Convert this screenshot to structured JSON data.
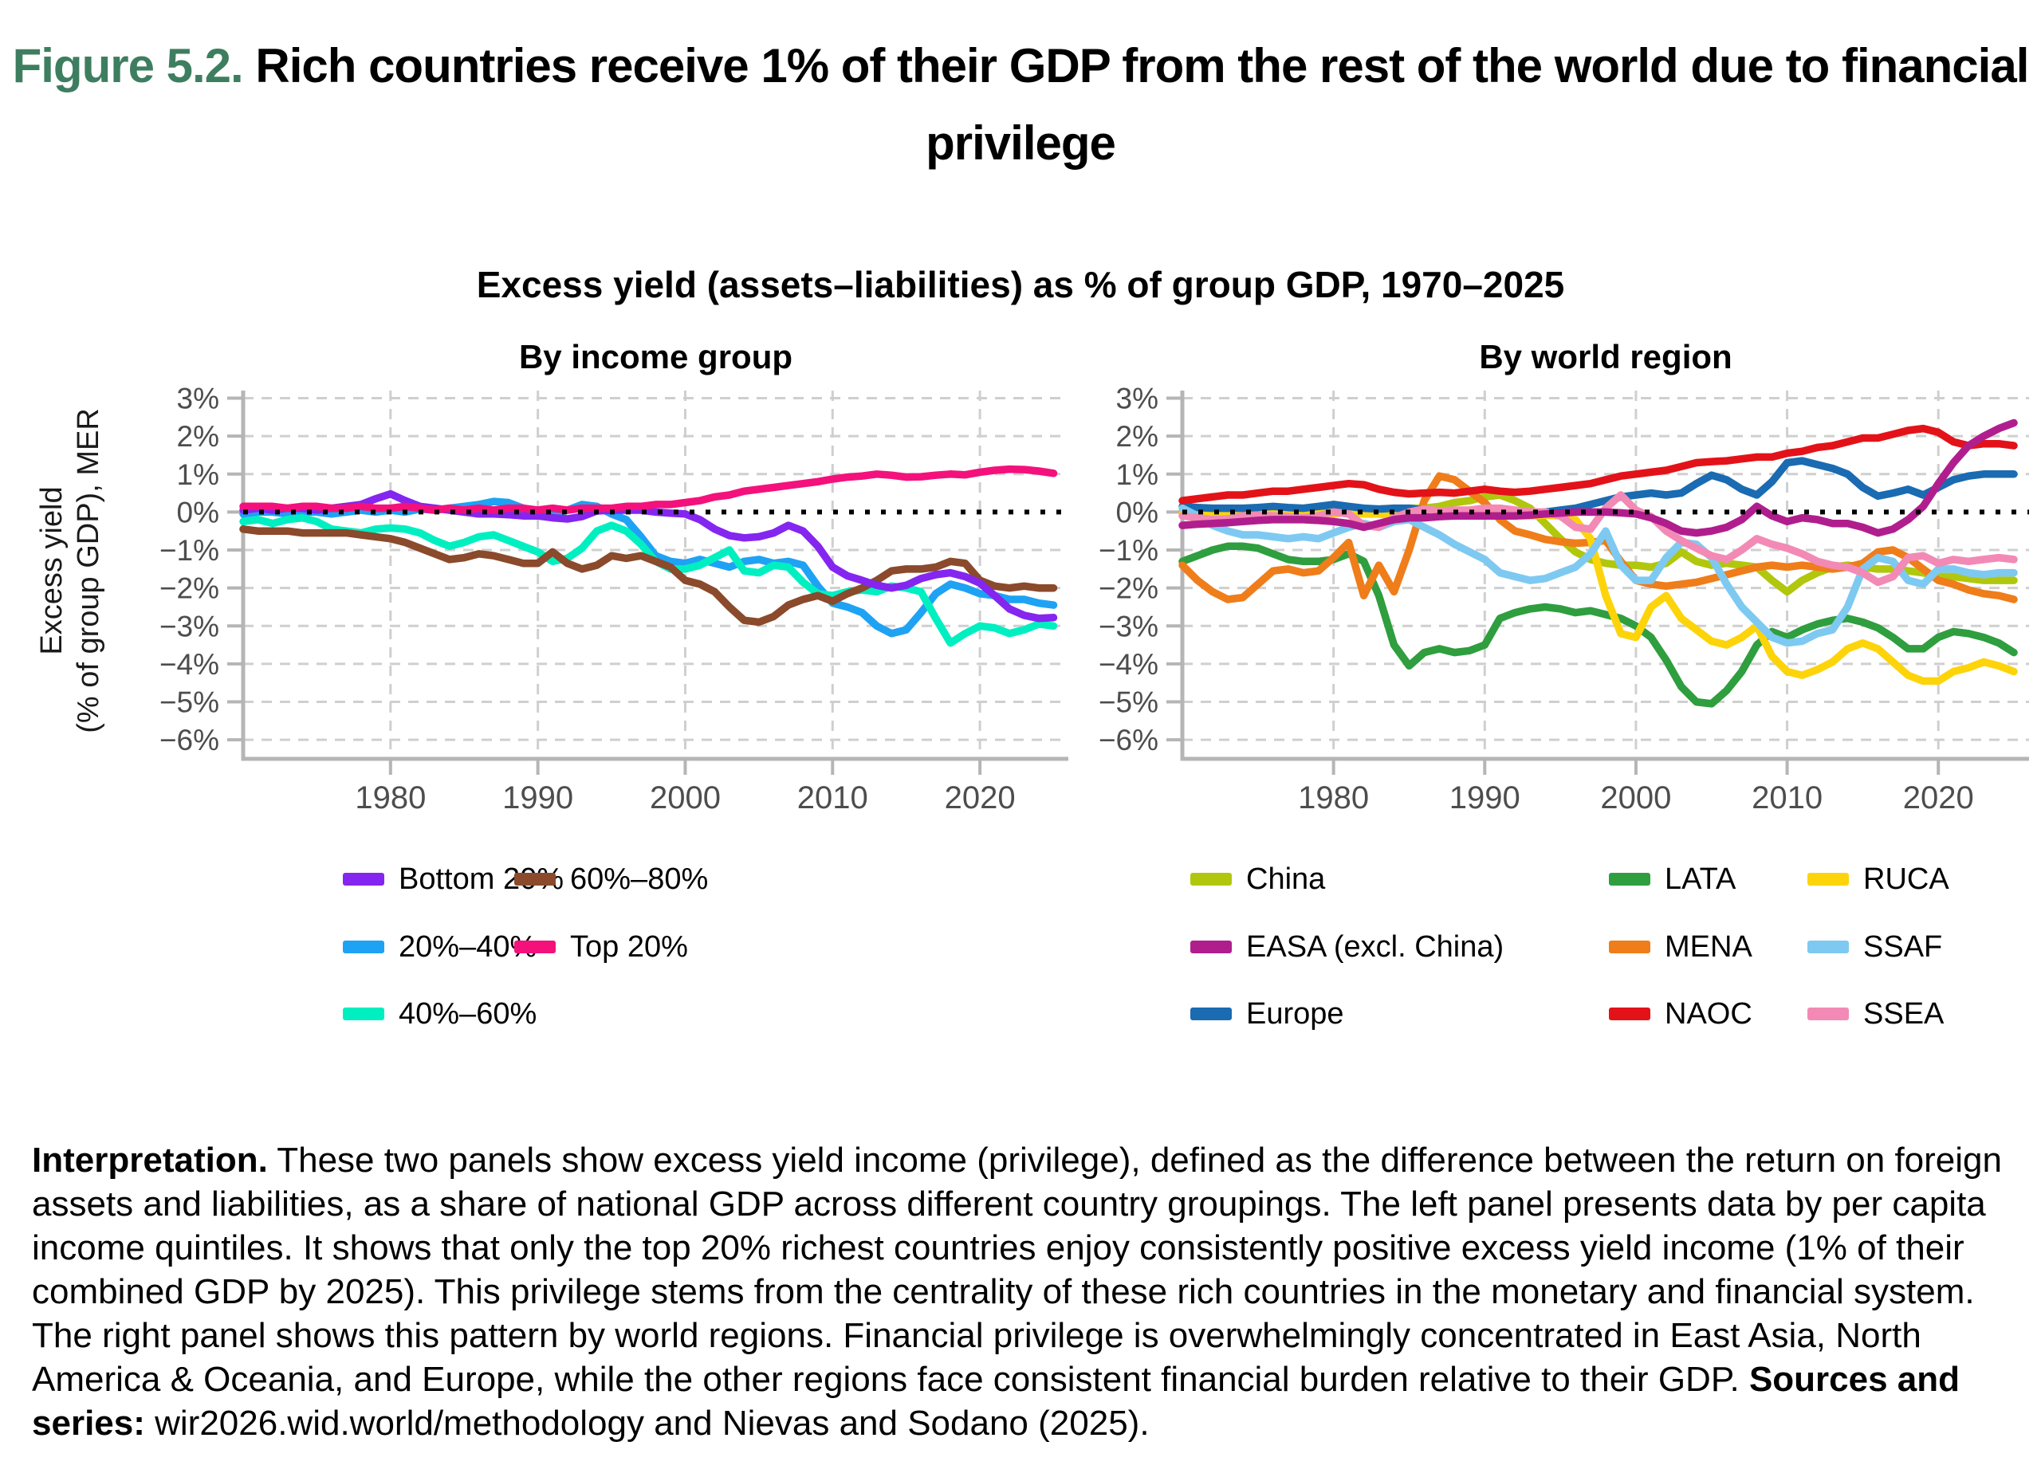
{
  "figure": {
    "label": "Figure 5.2.",
    "title_rest": " Rich countries receive 1% of their GDP from the rest of the world due to financial privilege",
    "subtitle": "Excess yield (assets–liabilities) as % of group GDP, 1970–2025",
    "y_axis_label_line1": "Excess yield",
    "y_axis_label_line2": "(% of group GDP), MER"
  },
  "interpretation": {
    "lead": "Interpretation.",
    "body": " These two panels show excess yield income (privilege), defined as the difference between the return on foreign assets and liabilities, as a share of national GDP across different country groupings. The left panel presents data by per capita income quintiles. It shows that only the top 20% richest countries enjoy consistently positive excess yield income (1% of their combined GDP by 2025). This privilege stems from the centrality of these rich countries in the monetary and financial system. The right panel shows this pattern by world regions. Financial privilege is overwhelmingly concentrated in East Asia, North America & Oceania, and Europe, while the other regions face consistent financial burden relative to their GDP. ",
    "sources_label": "Sources and series:",
    "sources_body": " wir2026.wid.world/methodology and Nievas and Sodano (2025)."
  },
  "style_colors": {
    "figure_label_green": "#3e7e60",
    "axis_gray": "#b5b5b5",
    "grid_gray": "#cfcfcf",
    "tick_text_gray": "#4d4d4d",
    "zero_line_black": "#000000"
  },
  "chart_data": [
    {
      "type": "line",
      "title": "By income group",
      "ylabel": "Excess yield (% of group GDP), MER",
      "x_years": {
        "from": 1970,
        "to": 2025
      },
      "xlim": [
        1970,
        2026
      ],
      "ylim": [
        -6.5,
        3.2
      ],
      "x_ticks": [
        1980,
        1990,
        2000,
        2010,
        2020
      ],
      "y_tick_values": [
        3,
        2,
        1,
        0,
        -1,
        -2,
        -3,
        -4,
        -5,
        -6
      ],
      "y_tick_labels": [
        "3%",
        "2%",
        "1%",
        "0%",
        "−1%",
        "−2%",
        "−3%",
        "−4%",
        "−5%",
        "−6%"
      ],
      "grid": "dashed",
      "zero_line": "dotted",
      "legend_position": "bottom",
      "draw_order": [
        1,
        2,
        3,
        0,
        4
      ],
      "series": [
        {
          "name": "Bottom 20%",
          "color": "#8426ef",
          "values": [
            0.05,
            0.1,
            0.05,
            0.1,
            0.1,
            0.05,
            0.1,
            0.15,
            0.2,
            0.35,
            0.48,
            0.3,
            0.15,
            0.1,
            0.05,
            0.0,
            -0.05,
            -0.05,
            -0.07,
            -0.1,
            -0.1,
            -0.15,
            -0.18,
            -0.12,
            0.03,
            0.05,
            0.05,
            0.05,
            0.0,
            -0.03,
            -0.05,
            -0.2,
            -0.45,
            -0.62,
            -0.68,
            -0.65,
            -0.55,
            -0.35,
            -0.5,
            -0.9,
            -1.45,
            -1.68,
            -1.8,
            -1.93,
            -2.0,
            -1.93,
            -1.75,
            -1.65,
            -1.6,
            -1.7,
            -1.87,
            -2.2,
            -2.55,
            -2.72,
            -2.8,
            -2.78
          ]
        },
        {
          "name": "20%–40%",
          "color": "#1ea2f4",
          "values": [
            -0.05,
            0.0,
            0.0,
            -0.05,
            0.0,
            0.0,
            -0.05,
            0.0,
            0.05,
            0.0,
            0.05,
            0.0,
            0.08,
            0.05,
            0.1,
            0.15,
            0.2,
            0.28,
            0.25,
            0.1,
            0.0,
            -0.05,
            0.05,
            0.2,
            0.15,
            -0.05,
            -0.2,
            -0.65,
            -1.15,
            -1.3,
            -1.35,
            -1.25,
            -1.35,
            -1.45,
            -1.3,
            -1.25,
            -1.35,
            -1.3,
            -1.4,
            -1.95,
            -2.4,
            -2.5,
            -2.65,
            -3.0,
            -3.2,
            -3.1,
            -2.65,
            -2.15,
            -1.9,
            -2.0,
            -2.15,
            -2.2,
            -2.3,
            -2.3,
            -2.4,
            -2.45
          ]
        },
        {
          "name": "40%–60%",
          "color": "#00efc1",
          "values": [
            -0.25,
            -0.2,
            -0.3,
            -0.2,
            -0.15,
            -0.25,
            -0.45,
            -0.5,
            -0.55,
            -0.45,
            -0.42,
            -0.45,
            -0.55,
            -0.75,
            -0.9,
            -0.8,
            -0.65,
            -0.6,
            -0.75,
            -0.9,
            -1.05,
            -1.3,
            -1.22,
            -0.95,
            -0.5,
            -0.35,
            -0.5,
            -0.85,
            -1.3,
            -1.5,
            -1.5,
            -1.4,
            -1.2,
            -1.0,
            -1.55,
            -1.6,
            -1.4,
            -1.45,
            -1.85,
            -2.15,
            -2.2,
            -2.1,
            -2.05,
            -2.1,
            -1.95,
            -2.0,
            -2.1,
            -2.8,
            -3.45,
            -3.2,
            -3.0,
            -3.05,
            -3.2,
            -3.1,
            -2.95,
            -3.0
          ]
        },
        {
          "name": "60%–80%",
          "color": "#8a4a2b",
          "values": [
            -0.45,
            -0.5,
            -0.5,
            -0.5,
            -0.55,
            -0.55,
            -0.55,
            -0.55,
            -0.6,
            -0.65,
            -0.7,
            -0.8,
            -0.95,
            -1.1,
            -1.25,
            -1.2,
            -1.1,
            -1.15,
            -1.25,
            -1.35,
            -1.35,
            -1.05,
            -1.35,
            -1.5,
            -1.4,
            -1.15,
            -1.22,
            -1.15,
            -1.3,
            -1.45,
            -1.8,
            -1.9,
            -2.1,
            -2.5,
            -2.85,
            -2.9,
            -2.75,
            -2.45,
            -2.3,
            -2.2,
            -2.35,
            -2.15,
            -2.0,
            -1.8,
            -1.55,
            -1.5,
            -1.5,
            -1.45,
            -1.3,
            -1.35,
            -1.8,
            -1.95,
            -2.0,
            -1.95,
            -2.0,
            -2.0
          ]
        },
        {
          "name": "Top 20%",
          "color": "#f4117c",
          "values": [
            0.15,
            0.15,
            0.15,
            0.1,
            0.15,
            0.15,
            0.1,
            0.1,
            0.15,
            0.1,
            0.1,
            0.15,
            0.1,
            0.05,
            0.1,
            0.05,
            0.1,
            0.05,
            0.1,
            0.1,
            0.05,
            0.1,
            0.05,
            0.1,
            0.1,
            0.1,
            0.15,
            0.15,
            0.2,
            0.2,
            0.25,
            0.3,
            0.4,
            0.45,
            0.55,
            0.6,
            0.65,
            0.7,
            0.75,
            0.8,
            0.87,
            0.92,
            0.95,
            1.0,
            0.97,
            0.92,
            0.93,
            0.97,
            1.0,
            0.98,
            1.05,
            1.1,
            1.13,
            1.12,
            1.08,
            1.02
          ]
        }
      ]
    },
    {
      "type": "line",
      "title": "By world region",
      "ylabel": "Excess yield (% of group GDP), MER",
      "x_years": {
        "from": 1970,
        "to": 2025
      },
      "xlim": [
        1970,
        2026
      ],
      "ylim": [
        -6.5,
        3.2
      ],
      "x_ticks": [
        1980,
        1990,
        2000,
        2010,
        2020
      ],
      "y_tick_values": [
        3,
        2,
        1,
        0,
        -1,
        -2,
        -3,
        -4,
        -5,
        -6
      ],
      "y_tick_labels": [
        "3%",
        "2%",
        "1%",
        "0%",
        "−1%",
        "−2%",
        "−3%",
        "−4%",
        "−5%",
        "−6%"
      ],
      "grid": "dashed",
      "zero_line": "dotted",
      "legend_position": "bottom",
      "draw_order": [
        0,
        3,
        4,
        6,
        2,
        5,
        7,
        8,
        1
      ],
      "series": [
        {
          "name": "China",
          "color": "#b1c70d",
          "values": [
            0.0,
            0.0,
            -0.05,
            0.0,
            0.0,
            0.0,
            0.05,
            0.0,
            0.0,
            0.05,
            0.05,
            0.0,
            0.0,
            0.05,
            0.05,
            0.1,
            0.1,
            0.15,
            0.25,
            0.3,
            0.4,
            0.45,
            0.3,
            0.1,
            -0.3,
            -0.7,
            -1.05,
            -1.25,
            -1.35,
            -1.4,
            -1.4,
            -1.45,
            -1.35,
            -1.05,
            -1.3,
            -1.4,
            -1.35,
            -1.4,
            -1.45,
            -1.8,
            -2.1,
            -1.8,
            -1.6,
            -1.45,
            -1.4,
            -1.45,
            -1.5,
            -1.5,
            -1.55,
            -1.6,
            -1.7,
            -1.7,
            -1.75,
            -1.8,
            -1.8,
            -1.8
          ]
        },
        {
          "name": "EASA (excl. China)",
          "color": "#b01e8e",
          "values": [
            -0.35,
            -0.32,
            -0.3,
            -0.28,
            -0.25,
            -0.22,
            -0.2,
            -0.2,
            -0.2,
            -0.22,
            -0.25,
            -0.3,
            -0.4,
            -0.3,
            -0.2,
            -0.15,
            -0.15,
            -0.12,
            -0.1,
            -0.1,
            -0.1,
            -0.1,
            -0.1,
            -0.08,
            -0.05,
            -0.03,
            0.0,
            0.0,
            0.0,
            -0.02,
            -0.05,
            -0.15,
            -0.3,
            -0.5,
            -0.55,
            -0.5,
            -0.4,
            -0.2,
            0.15,
            -0.1,
            -0.25,
            -0.15,
            -0.2,
            -0.3,
            -0.3,
            -0.4,
            -0.55,
            -0.45,
            -0.2,
            0.15,
            0.75,
            1.3,
            1.75,
            2.0,
            2.2,
            2.35
          ]
        },
        {
          "name": "Europe",
          "color": "#1a6bb1",
          "values": [
            0.15,
            0.12,
            0.1,
            0.1,
            0.1,
            0.12,
            0.15,
            0.12,
            0.1,
            0.15,
            0.2,
            0.15,
            0.1,
            0.08,
            0.1,
            0.1,
            0.05,
            0.03,
            0.0,
            -0.02,
            -0.1,
            -0.1,
            -0.1,
            -0.05,
            0.0,
            0.05,
            0.1,
            0.2,
            0.3,
            0.4,
            0.45,
            0.5,
            0.45,
            0.5,
            0.75,
            0.97,
            0.85,
            0.6,
            0.45,
            0.8,
            1.3,
            1.35,
            1.25,
            1.15,
            1.0,
            0.65,
            0.42,
            0.5,
            0.6,
            0.45,
            0.65,
            0.85,
            0.95,
            1.0,
            1.0,
            1.0
          ]
        },
        {
          "name": "LATA",
          "color": "#2f9e3e",
          "values": [
            -1.3,
            -1.15,
            -1.0,
            -0.9,
            -0.9,
            -0.95,
            -1.1,
            -1.25,
            -1.3,
            -1.3,
            -1.25,
            -1.1,
            -1.3,
            -2.2,
            -3.5,
            -4.05,
            -3.7,
            -3.6,
            -3.7,
            -3.65,
            -3.5,
            -2.8,
            -2.65,
            -2.55,
            -2.5,
            -2.55,
            -2.65,
            -2.6,
            -2.7,
            -2.8,
            -3.0,
            -3.3,
            -3.9,
            -4.6,
            -5.0,
            -5.05,
            -4.7,
            -4.2,
            -3.5,
            -3.15,
            -3.3,
            -3.1,
            -2.95,
            -2.85,
            -2.8,
            -2.9,
            -3.05,
            -3.3,
            -3.6,
            -3.6,
            -3.3,
            -3.15,
            -3.2,
            -3.3,
            -3.45,
            -3.7
          ]
        },
        {
          "name": "MENA",
          "color": "#ef7d1a",
          "values": [
            -1.4,
            -1.8,
            -2.1,
            -2.3,
            -2.25,
            -1.9,
            -1.55,
            -1.5,
            -1.6,
            -1.55,
            -1.2,
            -0.8,
            -2.2,
            -1.4,
            -2.1,
            -1.0,
            0.3,
            0.95,
            0.85,
            0.55,
            0.25,
            -0.2,
            -0.5,
            -0.6,
            -0.72,
            -0.78,
            -0.82,
            -0.8,
            -0.75,
            -1.3,
            -1.8,
            -1.9,
            -1.95,
            -1.9,
            -1.85,
            -1.75,
            -1.65,
            -1.55,
            -1.45,
            -1.4,
            -1.45,
            -1.4,
            -1.45,
            -1.5,
            -1.45,
            -1.35,
            -1.05,
            -1.0,
            -1.2,
            -1.5,
            -1.8,
            -1.9,
            -2.05,
            -2.15,
            -2.2,
            -2.3
          ]
        },
        {
          "name": "NAOC",
          "color": "#e31219",
          "values": [
            0.3,
            0.35,
            0.4,
            0.45,
            0.45,
            0.5,
            0.55,
            0.55,
            0.6,
            0.65,
            0.7,
            0.75,
            0.72,
            0.6,
            0.52,
            0.48,
            0.5,
            0.52,
            0.5,
            0.55,
            0.6,
            0.55,
            0.52,
            0.55,
            0.6,
            0.65,
            0.7,
            0.75,
            0.85,
            0.95,
            1.0,
            1.05,
            1.1,
            1.2,
            1.3,
            1.33,
            1.35,
            1.4,
            1.45,
            1.45,
            1.55,
            1.6,
            1.7,
            1.75,
            1.85,
            1.95,
            1.95,
            2.05,
            2.15,
            2.2,
            2.1,
            1.85,
            1.75,
            1.8,
            1.8,
            1.75
          ]
        },
        {
          "name": "RUCA",
          "color": "#fdd40a",
          "values": [
            -0.05,
            0.0,
            -0.05,
            0.0,
            -0.05,
            0.0,
            -0.05,
            -0.05,
            0.0,
            -0.05,
            -0.05,
            0.0,
            -0.05,
            -0.05,
            -0.1,
            -0.15,
            -0.1,
            -0.05,
            -0.05,
            -0.05,
            -0.05,
            -0.08,
            -0.1,
            -0.1,
            -0.08,
            -0.1,
            -0.2,
            -0.7,
            -2.2,
            -3.2,
            -3.3,
            -2.5,
            -2.2,
            -2.8,
            -3.1,
            -3.4,
            -3.5,
            -3.3,
            -3.0,
            -3.8,
            -4.2,
            -4.3,
            -4.15,
            -3.95,
            -3.6,
            -3.45,
            -3.6,
            -3.95,
            -4.3,
            -4.45,
            -4.45,
            -4.2,
            -4.1,
            -3.95,
            -4.05,
            -4.2
          ]
        },
        {
          "name": "SSAF",
          "color": "#7ec9f1",
          "values": [
            0.1,
            -0.1,
            -0.35,
            -0.5,
            -0.6,
            -0.6,
            -0.65,
            -0.7,
            -0.65,
            -0.7,
            -0.55,
            -0.4,
            -0.3,
            -0.4,
            -0.25,
            -0.2,
            -0.4,
            -0.6,
            -0.85,
            -1.05,
            -1.25,
            -1.6,
            -1.7,
            -1.8,
            -1.75,
            -1.6,
            -1.45,
            -1.1,
            -0.5,
            -1.4,
            -1.8,
            -1.8,
            -1.2,
            -0.8,
            -0.85,
            -1.2,
            -1.9,
            -2.5,
            -2.9,
            -3.3,
            -3.45,
            -3.4,
            -3.2,
            -3.1,
            -2.5,
            -1.5,
            -1.2,
            -1.3,
            -1.8,
            -1.9,
            -1.5,
            -1.5,
            -1.6,
            -1.65,
            -1.6,
            -1.6
          ]
        },
        {
          "name": "SSEA",
          "color": "#f28ab5",
          "values": [
            -0.1,
            -0.15,
            -0.2,
            -0.18,
            -0.1,
            -0.08,
            -0.1,
            -0.12,
            -0.15,
            -0.1,
            0.0,
            -0.05,
            -0.35,
            -0.4,
            -0.15,
            0.0,
            0.08,
            0.03,
            0.05,
            0.05,
            0.1,
            0.1,
            0.05,
            0.0,
            0.0,
            -0.1,
            -0.4,
            -0.45,
            0.1,
            0.45,
            0.05,
            -0.12,
            -0.5,
            -0.75,
            -0.95,
            -1.15,
            -1.25,
            -1.0,
            -0.7,
            -0.85,
            -0.95,
            -1.1,
            -1.3,
            -1.4,
            -1.45,
            -1.6,
            -1.85,
            -1.7,
            -1.2,
            -1.15,
            -1.35,
            -1.25,
            -1.3,
            -1.25,
            -1.2,
            -1.25
          ]
        }
      ]
    }
  ],
  "legends": {
    "left_columns": [
      [
        0,
        1,
        2
      ],
      [
        3,
        4
      ]
    ],
    "right_columns": [
      [
        0,
        1,
        2
      ],
      [
        3,
        4,
        5
      ],
      [
        6,
        7,
        8
      ]
    ]
  }
}
